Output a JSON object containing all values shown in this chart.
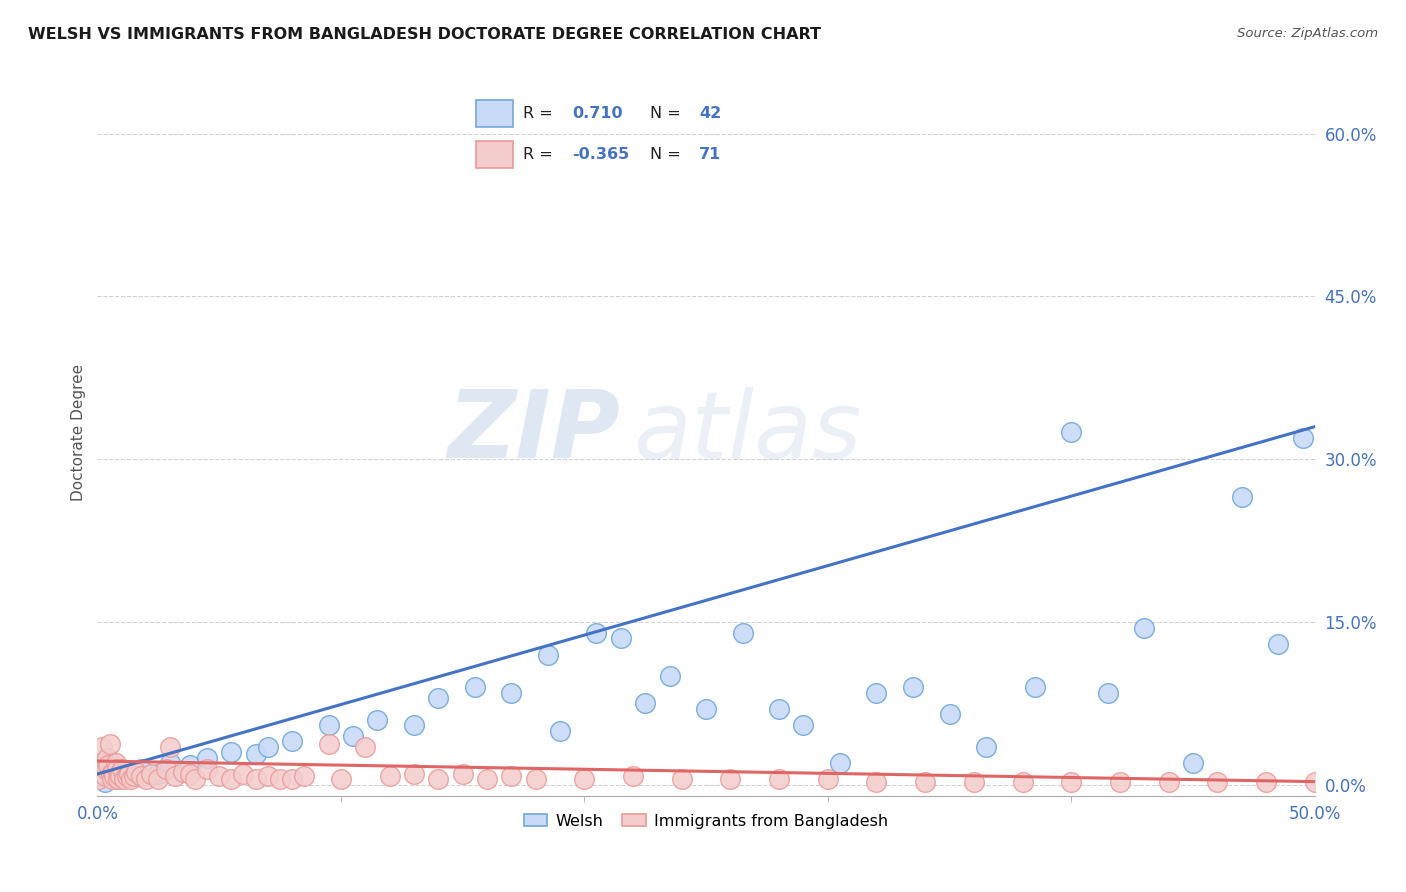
{
  "title": "WELSH VS IMMIGRANTS FROM BANGLADESH DOCTORATE DEGREE CORRELATION CHART",
  "source": "Source: ZipAtlas.com",
  "ylabel": "Doctorate Degree",
  "ytick_vals": [
    0.0,
    15.0,
    30.0,
    45.0,
    60.0
  ],
  "xlim": [
    0.0,
    50.0
  ],
  "ylim": [
    -1.0,
    66.0
  ],
  "blue_face": "#c9daf8",
  "blue_edge": "#6fa8dc",
  "pink_face": "#f4cccc",
  "pink_edge": "#ea9999",
  "line_blue": "#4472c4",
  "line_pink": "#e06666",
  "legend_R_blue": "0.710",
  "legend_N_blue": "42",
  "legend_R_pink": "-0.365",
  "legend_N_pink": "71",
  "legend_label_blue": "Welsh",
  "legend_label_pink": "Immigrants from Bangladesh",
  "watermark_zip": "ZIP",
  "watermark_atlas": "atlas",
  "blue_scatter": [
    [
      0.3,
      0.3
    ],
    [
      0.8,
      0.5
    ],
    [
      1.2,
      0.8
    ],
    [
      1.8,
      1.5
    ],
    [
      2.5,
      1.0
    ],
    [
      3.0,
      2.0
    ],
    [
      3.8,
      1.8
    ],
    [
      4.5,
      2.5
    ],
    [
      5.5,
      3.0
    ],
    [
      6.5,
      2.8
    ],
    [
      7.0,
      3.5
    ],
    [
      8.0,
      4.0
    ],
    [
      9.5,
      5.5
    ],
    [
      10.5,
      4.5
    ],
    [
      11.5,
      6.0
    ],
    [
      13.0,
      5.5
    ],
    [
      14.0,
      8.0
    ],
    [
      15.5,
      9.0
    ],
    [
      17.0,
      8.5
    ],
    [
      18.5,
      12.0
    ],
    [
      19.0,
      5.0
    ],
    [
      20.5,
      14.0
    ],
    [
      21.5,
      13.5
    ],
    [
      22.5,
      7.5
    ],
    [
      23.5,
      10.0
    ],
    [
      25.0,
      7.0
    ],
    [
      26.5,
      14.0
    ],
    [
      28.0,
      7.0
    ],
    [
      29.0,
      5.5
    ],
    [
      30.5,
      2.0
    ],
    [
      32.0,
      8.5
    ],
    [
      33.5,
      9.0
    ],
    [
      35.0,
      6.5
    ],
    [
      36.5,
      3.5
    ],
    [
      38.5,
      9.0
    ],
    [
      40.0,
      32.5
    ],
    [
      41.5,
      8.5
    ],
    [
      43.0,
      14.5
    ],
    [
      45.0,
      2.0
    ],
    [
      47.0,
      26.5
    ],
    [
      48.5,
      13.0
    ],
    [
      49.5,
      32.0
    ]
  ],
  "pink_scatter": [
    [
      0.05,
      0.5
    ],
    [
      0.1,
      1.2
    ],
    [
      0.15,
      2.0
    ],
    [
      0.2,
      3.5
    ],
    [
      0.25,
      1.0
    ],
    [
      0.3,
      0.8
    ],
    [
      0.35,
      1.5
    ],
    [
      0.4,
      2.5
    ],
    [
      0.45,
      1.8
    ],
    [
      0.5,
      3.8
    ],
    [
      0.55,
      1.0
    ],
    [
      0.6,
      0.5
    ],
    [
      0.65,
      1.2
    ],
    [
      0.7,
      0.8
    ],
    [
      0.75,
      2.0
    ],
    [
      0.8,
      1.5
    ],
    [
      0.85,
      0.5
    ],
    [
      0.9,
      1.0
    ],
    [
      0.95,
      0.8
    ],
    [
      1.0,
      1.5
    ],
    [
      1.1,
      0.5
    ],
    [
      1.2,
      0.8
    ],
    [
      1.3,
      1.0
    ],
    [
      1.4,
      0.5
    ],
    [
      1.5,
      0.8
    ],
    [
      1.6,
      1.2
    ],
    [
      1.8,
      0.8
    ],
    [
      2.0,
      0.5
    ],
    [
      2.2,
      1.0
    ],
    [
      2.5,
      0.5
    ],
    [
      2.8,
      1.5
    ],
    [
      3.0,
      3.5
    ],
    [
      3.2,
      0.8
    ],
    [
      3.5,
      1.2
    ],
    [
      3.8,
      1.0
    ],
    [
      4.0,
      0.5
    ],
    [
      4.5,
      1.5
    ],
    [
      5.0,
      0.8
    ],
    [
      5.5,
      0.5
    ],
    [
      6.0,
      1.0
    ],
    [
      6.5,
      0.5
    ],
    [
      7.0,
      0.8
    ],
    [
      7.5,
      0.5
    ],
    [
      8.0,
      0.5
    ],
    [
      8.5,
      0.8
    ],
    [
      9.5,
      3.8
    ],
    [
      10.0,
      0.5
    ],
    [
      11.0,
      3.5
    ],
    [
      12.0,
      0.8
    ],
    [
      13.0,
      1.0
    ],
    [
      14.0,
      0.5
    ],
    [
      15.0,
      1.0
    ],
    [
      16.0,
      0.5
    ],
    [
      17.0,
      0.8
    ],
    [
      18.0,
      0.5
    ],
    [
      20.0,
      0.5
    ],
    [
      22.0,
      0.8
    ],
    [
      24.0,
      0.5
    ],
    [
      26.0,
      0.5
    ],
    [
      28.0,
      0.5
    ],
    [
      30.0,
      0.5
    ],
    [
      32.0,
      0.3
    ],
    [
      34.0,
      0.3
    ],
    [
      36.0,
      0.3
    ],
    [
      38.0,
      0.3
    ],
    [
      40.0,
      0.3
    ],
    [
      42.0,
      0.3
    ],
    [
      44.0,
      0.3
    ],
    [
      46.0,
      0.3
    ],
    [
      48.0,
      0.3
    ],
    [
      50.0,
      0.3
    ]
  ],
  "blue_trendline_x": [
    0.0,
    50.0
  ],
  "blue_trendline_y": [
    1.0,
    33.0
  ],
  "pink_trendline_x": [
    0.0,
    50.0
  ],
  "pink_trendline_y": [
    2.2,
    0.3
  ]
}
